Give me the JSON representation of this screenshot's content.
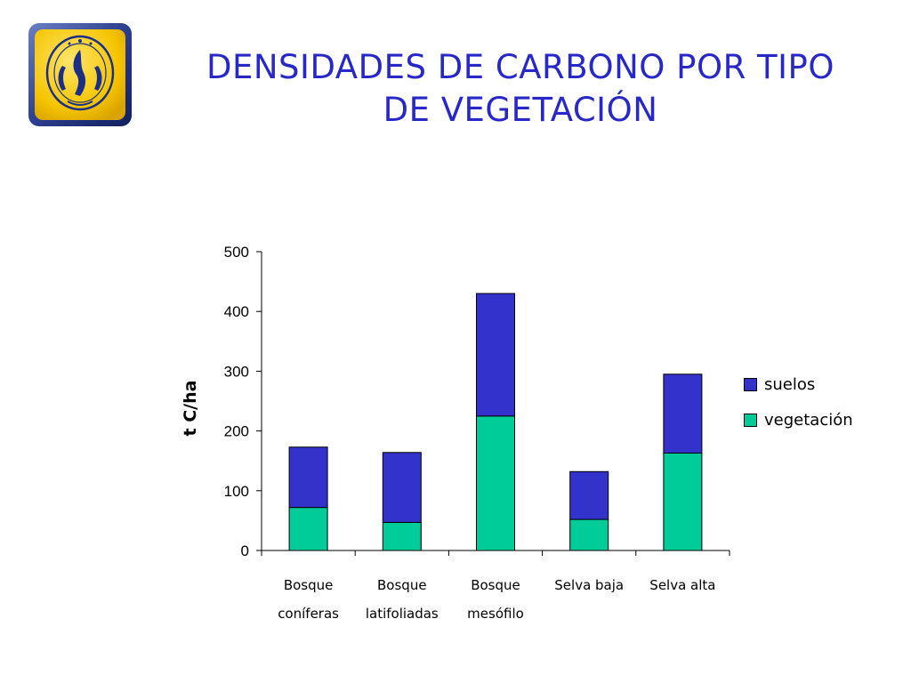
{
  "slide": {
    "title_line1": "DENSIDADES DE CARBONO POR TIPO",
    "title_line2": "DE VEGETACIÓN",
    "logo_icon": "unam-emblem-icon",
    "title_color": "#2828c8"
  },
  "chart_data": {
    "type": "bar",
    "stacked": true,
    "categories": [
      [
        "Bosque",
        "coníferas"
      ],
      [
        "Bosque",
        "latifoliadas"
      ],
      [
        "Bosque",
        "mesófilo"
      ],
      [
        "Selva baja",
        ""
      ],
      [
        "Selva alta",
        ""
      ]
    ],
    "series": [
      {
        "name": "vegetación",
        "color": "#00cc99",
        "values": [
          72,
          47,
          225,
          52,
          163
        ]
      },
      {
        "name": "suelos",
        "color": "#3333cc",
        "values": [
          101,
          117,
          205,
          80,
          132
        ]
      }
    ],
    "legend_order": [
      "suelos",
      "vegetación"
    ],
    "ylabel": "t C/ha",
    "ylim": [
      0,
      500
    ],
    "yticks": [
      0,
      100,
      200,
      300,
      400,
      500
    ],
    "legend_position": "right",
    "grid": false
  }
}
